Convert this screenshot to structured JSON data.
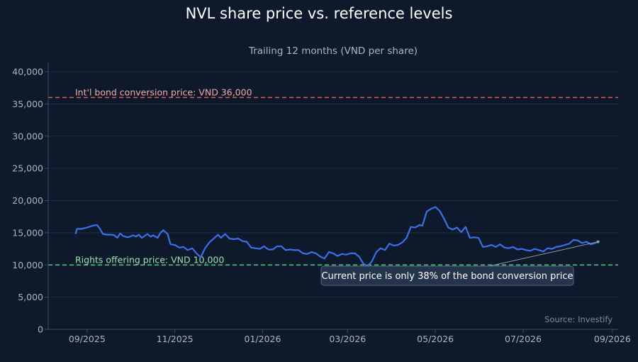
{
  "chart_data": {
    "type": "line",
    "title": "NVL share price vs. reference levels",
    "subtitle": "Trailing 12 months (VND per share)",
    "xlabel": "",
    "ylabel": "",
    "source": "Source: Investify",
    "xlim": [
      "2025-08-05",
      "2026-09-05"
    ],
    "ylim": [
      0,
      41000
    ],
    "y_ticks": [
      0,
      5000,
      10000,
      15000,
      20000,
      25000,
      30000,
      35000,
      40000
    ],
    "y_tick_labels": [
      "0",
      "5,000",
      "10,000",
      "15,000",
      "20,000",
      "25,000",
      "30,000",
      "35,000",
      "40,000"
    ],
    "x_ticks": [
      "2025-09-01",
      "2025-11-01",
      "2026-01-01",
      "2026-03-01",
      "2026-05-01",
      "2026-07-01",
      "2026-09-01"
    ],
    "x_tick_labels": [
      "09/2025",
      "11/2025",
      "01/2026",
      "03/2026",
      "05/2026",
      "07/2026",
      "09/2026"
    ],
    "grid": true,
    "series": [
      {
        "color": "#3b6fe8",
        "points": [
          [
            "2025-08-24",
            14800
          ],
          [
            "2025-08-25",
            15600
          ],
          [
            "2025-08-28",
            15600
          ],
          [
            "2025-09-01",
            15800
          ],
          [
            "2025-09-05",
            16100
          ],
          [
            "2025-09-08",
            16200
          ],
          [
            "2025-09-10",
            15600
          ],
          [
            "2025-09-12",
            14800
          ],
          [
            "2025-09-15",
            14700
          ],
          [
            "2025-09-18",
            14700
          ],
          [
            "2025-09-20",
            14600
          ],
          [
            "2025-09-22",
            14200
          ],
          [
            "2025-09-24",
            14900
          ],
          [
            "2025-09-26",
            14500
          ],
          [
            "2025-09-29",
            14300
          ],
          [
            "2025-10-01",
            14400
          ],
          [
            "2025-10-03",
            14600
          ],
          [
            "2025-10-05",
            14400
          ],
          [
            "2025-10-07",
            14700
          ],
          [
            "2025-10-09",
            14200
          ],
          [
            "2025-10-11",
            14500
          ],
          [
            "2025-10-13",
            14800
          ],
          [
            "2025-10-15",
            14400
          ],
          [
            "2025-10-17",
            14600
          ],
          [
            "2025-10-20",
            14200
          ],
          [
            "2025-10-22",
            15000
          ],
          [
            "2025-10-24",
            15400
          ],
          [
            "2025-10-27",
            14800
          ],
          [
            "2025-10-29",
            13200
          ],
          [
            "2025-11-01",
            13100
          ],
          [
            "2025-11-04",
            12700
          ],
          [
            "2025-11-07",
            12800
          ],
          [
            "2025-11-10",
            12300
          ],
          [
            "2025-11-13",
            12600
          ],
          [
            "2025-11-16",
            11800
          ],
          [
            "2025-11-19",
            11200
          ],
          [
            "2025-11-22",
            12600
          ],
          [
            "2025-11-25",
            13500
          ],
          [
            "2025-11-28",
            14100
          ],
          [
            "2025-12-01",
            14700
          ],
          [
            "2025-12-03",
            14200
          ],
          [
            "2025-12-06",
            14800
          ],
          [
            "2025-12-09",
            14100
          ],
          [
            "2025-12-12",
            14000
          ],
          [
            "2025-12-15",
            14100
          ],
          [
            "2025-12-18",
            13700
          ],
          [
            "2025-12-21",
            13600
          ],
          [
            "2025-12-24",
            12700
          ],
          [
            "2025-12-27",
            12600
          ],
          [
            "2025-12-30",
            12500
          ],
          [
            "2026-01-02",
            12900
          ],
          [
            "2026-01-05",
            12400
          ],
          [
            "2026-01-08",
            12400
          ],
          [
            "2026-01-11",
            12900
          ],
          [
            "2026-01-14",
            12900
          ],
          [
            "2026-01-17",
            12300
          ],
          [
            "2026-01-20",
            12400
          ],
          [
            "2026-01-23",
            12300
          ],
          [
            "2026-01-26",
            12300
          ],
          [
            "2026-01-29",
            11800
          ],
          [
            "2026-02-01",
            11700
          ],
          [
            "2026-02-04",
            12000
          ],
          [
            "2026-02-07",
            11800
          ],
          [
            "2026-02-10",
            11300
          ],
          [
            "2026-02-13",
            11000
          ],
          [
            "2026-02-16",
            12000
          ],
          [
            "2026-02-19",
            11800
          ],
          [
            "2026-02-22",
            11400
          ],
          [
            "2026-02-25",
            11700
          ],
          [
            "2026-02-28",
            11600
          ],
          [
            "2026-03-03",
            11800
          ],
          [
            "2026-03-06",
            11800
          ],
          [
            "2026-03-09",
            11300
          ],
          [
            "2026-03-12",
            10200
          ],
          [
            "2026-03-15",
            9800
          ],
          [
            "2026-03-18",
            10600
          ],
          [
            "2026-03-21",
            12000
          ],
          [
            "2026-03-24",
            12600
          ],
          [
            "2026-03-27",
            12300
          ],
          [
            "2026-03-30",
            13300
          ],
          [
            "2026-04-02",
            13000
          ],
          [
            "2026-04-05",
            13100
          ],
          [
            "2026-04-08",
            13500
          ],
          [
            "2026-04-11",
            14200
          ],
          [
            "2026-04-14",
            15900
          ],
          [
            "2026-04-17",
            15800
          ],
          [
            "2026-04-20",
            16200
          ],
          [
            "2026-04-22",
            16100
          ],
          [
            "2026-04-25",
            18300
          ],
          [
            "2026-04-28",
            18700
          ],
          [
            "2026-05-01",
            19000
          ],
          [
            "2026-05-04",
            18400
          ],
          [
            "2026-05-07",
            17200
          ],
          [
            "2026-05-10",
            15800
          ],
          [
            "2026-05-13",
            15500
          ],
          [
            "2026-05-16",
            15800
          ],
          [
            "2026-05-19",
            15100
          ],
          [
            "2026-05-22",
            15900
          ],
          [
            "2026-05-25",
            14200
          ],
          [
            "2026-05-28",
            14300
          ],
          [
            "2026-05-31",
            14200
          ],
          [
            "2026-06-03",
            12800
          ],
          [
            "2026-06-06",
            12900
          ],
          [
            "2026-06-09",
            13100
          ],
          [
            "2026-06-12",
            12800
          ],
          [
            "2026-06-15",
            13200
          ],
          [
            "2026-06-18",
            12700
          ],
          [
            "2026-06-21",
            12600
          ],
          [
            "2026-06-24",
            12800
          ],
          [
            "2026-06-27",
            12400
          ],
          [
            "2026-06-30",
            12500
          ],
          [
            "2026-07-03",
            12300
          ],
          [
            "2026-07-06",
            12200
          ],
          [
            "2026-07-09",
            12500
          ],
          [
            "2026-07-12",
            12300
          ],
          [
            "2026-07-15",
            12100
          ],
          [
            "2026-07-18",
            12600
          ],
          [
            "2026-07-21",
            12500
          ],
          [
            "2026-07-24",
            12800
          ],
          [
            "2026-07-27",
            12900
          ],
          [
            "2026-07-30",
            13100
          ],
          [
            "2026-08-02",
            13300
          ],
          [
            "2026-08-05",
            13900
          ],
          [
            "2026-08-08",
            13800
          ],
          [
            "2026-08-11",
            13400
          ],
          [
            "2026-08-14",
            13600
          ],
          [
            "2026-08-17",
            13200
          ],
          [
            "2026-08-20",
            13400
          ],
          [
            "2026-08-23",
            13700
          ]
        ]
      }
    ],
    "reference_lines": [
      {
        "label": "Int'l bond conversion price: VND 36,000",
        "value": 36000,
        "color": "#e05a5a",
        "label_color": "#f0a8a8"
      },
      {
        "label": "Rights offering price: VND 10,000",
        "value": 10000,
        "color": "#4fc26f",
        "label_color": "#9ee0ae"
      }
    ],
    "annotations": [
      {
        "text": "Current price is only 38% of the bond conversion price",
        "x": "2026-08-22",
        "y": 13600
      }
    ]
  },
  "colors": {
    "background": "#0e1a2b",
    "grid": "#1f2d42",
    "axis": "#3a4a60",
    "tick_text": "#a9b4c4",
    "title": "#ffffff",
    "subtitle": "#a9b4c4",
    "source": "#7d8a9c",
    "annotation_bg": "#24344c",
    "annotation_border": "#56677f",
    "annotation_text": "#ffffff"
  }
}
